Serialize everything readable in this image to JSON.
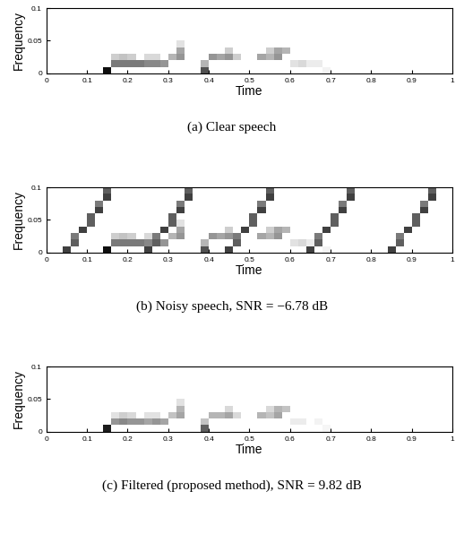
{
  "chart_data": [
    {
      "type": "heatmap",
      "caption": "(a) Clear speech",
      "x_label": "Time",
      "y_label": "Frequency",
      "xlim": [
        0,
        1
      ],
      "ylim": [
        0,
        0.1
      ],
      "xticks": [
        0,
        0.1,
        0.2,
        0.3,
        0.4,
        0.5,
        0.6,
        0.7,
        0.8,
        0.9,
        1
      ],
      "yticks": [
        0,
        0.05,
        0.1
      ],
      "color": "Greys",
      "color_range": [
        0,
        1
      ],
      "x_bins": [
        0,
        0.02,
        0.04,
        0.06,
        0.08,
        0.1,
        0.12,
        0.14,
        0.16,
        0.18,
        0.2,
        0.22,
        0.24,
        0.26,
        0.28,
        0.3,
        0.32,
        0.34,
        0.36,
        0.38,
        0.4,
        0.42,
        0.44,
        0.46,
        0.48,
        0.5,
        0.52,
        0.54,
        0.56,
        0.58,
        0.6,
        0.62,
        0.64,
        0.66,
        0.68,
        0.7,
        0.72,
        0.74,
        0.76,
        0.78,
        0.8,
        0.82,
        0.84,
        0.86,
        0.88,
        0.9,
        0.92,
        0.94,
        0.96,
        0.98,
        1
      ],
      "y_bins": [
        0,
        0.01,
        0.02,
        0.03,
        0.04,
        0.05,
        0.06,
        0.07,
        0.08,
        0.09,
        0.1
      ],
      "cells": [
        [
          0.14,
          0,
          0.95
        ],
        [
          0.16,
          0.01,
          0.6
        ],
        [
          0.18,
          0.01,
          0.6
        ],
        [
          0.2,
          0.01,
          0.6
        ],
        [
          0.22,
          0.01,
          0.6
        ],
        [
          0.24,
          0.01,
          0.55
        ],
        [
          0.26,
          0.01,
          0.55
        ],
        [
          0.28,
          0.01,
          0.5
        ],
        [
          0.16,
          0.02,
          0.3
        ],
        [
          0.18,
          0.02,
          0.35
        ],
        [
          0.2,
          0.02,
          0.3
        ],
        [
          0.24,
          0.02,
          0.25
        ],
        [
          0.26,
          0.02,
          0.25
        ],
        [
          0.3,
          0.02,
          0.4
        ],
        [
          0.32,
          0.02,
          0.5
        ],
        [
          0.32,
          0.03,
          0.45
        ],
        [
          0.32,
          0.04,
          0.2
        ],
        [
          0.38,
          0,
          0.75
        ],
        [
          0.38,
          0.01,
          0.4
        ],
        [
          0.4,
          0.02,
          0.5
        ],
        [
          0.42,
          0.02,
          0.45
        ],
        [
          0.44,
          0.02,
          0.5
        ],
        [
          0.44,
          0.03,
          0.3
        ],
        [
          0.46,
          0.02,
          0.3
        ],
        [
          0.52,
          0.02,
          0.45
        ],
        [
          0.54,
          0.02,
          0.4
        ],
        [
          0.56,
          0.02,
          0.5
        ],
        [
          0.56,
          0.03,
          0.45
        ],
        [
          0.58,
          0.03,
          0.4
        ],
        [
          0.54,
          0.03,
          0.3
        ],
        [
          0.6,
          0.01,
          0.2
        ],
        [
          0.62,
          0.01,
          0.25
        ],
        [
          0.64,
          0.01,
          0.15
        ],
        [
          0.66,
          0.01,
          0.15
        ],
        [
          0.68,
          0,
          0.1
        ]
      ]
    },
    {
      "type": "heatmap",
      "caption": "(b) Noisy speech, SNR = −6.78 dB",
      "x_label": "Time",
      "y_label": "Frequency",
      "xlim": [
        0,
        1
      ],
      "ylim": [
        0,
        0.1
      ],
      "xticks": [
        0,
        0.1,
        0.2,
        0.3,
        0.4,
        0.5,
        0.6,
        0.7,
        0.8,
        0.9,
        1
      ],
      "yticks": [
        0,
        0.05,
        0.1
      ],
      "color": "Greys",
      "color_range": [
        0,
        1
      ],
      "x_bins": [
        0,
        0.02,
        0.04,
        0.06,
        0.08,
        0.1,
        0.12,
        0.14,
        0.16,
        0.18,
        0.2,
        0.22,
        0.24,
        0.26,
        0.28,
        0.3,
        0.32,
        0.34,
        0.36,
        0.38,
        0.4,
        0.42,
        0.44,
        0.46,
        0.48,
        0.5,
        0.52,
        0.54,
        0.56,
        0.58,
        0.6,
        0.62,
        0.64,
        0.66,
        0.68,
        0.7,
        0.72,
        0.74,
        0.76,
        0.78,
        0.8,
        0.82,
        0.84,
        0.86,
        0.88,
        0.9,
        0.92,
        0.94,
        0.96,
        0.98,
        1
      ],
      "y_bins": [
        0,
        0.01,
        0.02,
        0.03,
        0.04,
        0.05,
        0.06,
        0.07,
        0.08,
        0.09,
        0.1
      ],
      "cells": [
        [
          0.14,
          0,
          0.95
        ],
        [
          0.16,
          0.01,
          0.6
        ],
        [
          0.18,
          0.01,
          0.6
        ],
        [
          0.2,
          0.01,
          0.6
        ],
        [
          0.22,
          0.01,
          0.6
        ],
        [
          0.24,
          0.01,
          0.55
        ],
        [
          0.26,
          0.01,
          0.55
        ],
        [
          0.28,
          0.01,
          0.5
        ],
        [
          0.16,
          0.02,
          0.3
        ],
        [
          0.18,
          0.02,
          0.35
        ],
        [
          0.2,
          0.02,
          0.3
        ],
        [
          0.24,
          0.02,
          0.25
        ],
        [
          0.26,
          0.02,
          0.25
        ],
        [
          0.3,
          0.02,
          0.4
        ],
        [
          0.32,
          0.02,
          0.5
        ],
        [
          0.32,
          0.03,
          0.45
        ],
        [
          0.32,
          0.04,
          0.2
        ],
        [
          0.38,
          0,
          0.75
        ],
        [
          0.38,
          0.01,
          0.4
        ],
        [
          0.4,
          0.02,
          0.5
        ],
        [
          0.42,
          0.02,
          0.45
        ],
        [
          0.44,
          0.02,
          0.5
        ],
        [
          0.44,
          0.03,
          0.3
        ],
        [
          0.46,
          0.02,
          0.3
        ],
        [
          0.52,
          0.02,
          0.45
        ],
        [
          0.54,
          0.02,
          0.4
        ],
        [
          0.56,
          0.02,
          0.5
        ],
        [
          0.56,
          0.03,
          0.45
        ],
        [
          0.58,
          0.03,
          0.4
        ],
        [
          0.54,
          0.03,
          0.3
        ],
        [
          0.6,
          0.01,
          0.2
        ],
        [
          0.62,
          0.01,
          0.25
        ],
        [
          0.64,
          0.01,
          0.15
        ],
        [
          0.66,
          0.01,
          0.15
        ],
        [
          0.68,
          0,
          0.1
        ],
        [
          0.04,
          0,
          0.8
        ],
        [
          0.06,
          0.01,
          0.7
        ],
        [
          0.06,
          0.02,
          0.6
        ],
        [
          0.08,
          0.03,
          0.8
        ],
        [
          0.1,
          0.04,
          0.7
        ],
        [
          0.1,
          0.05,
          0.7
        ],
        [
          0.12,
          0.06,
          0.8
        ],
        [
          0.12,
          0.07,
          0.6
        ],
        [
          0.14,
          0.08,
          0.8
        ],
        [
          0.14,
          0.09,
          0.7
        ],
        [
          0.24,
          0,
          0.8
        ],
        [
          0.26,
          0.01,
          0.7
        ],
        [
          0.26,
          0.02,
          0.6
        ],
        [
          0.28,
          0.03,
          0.8
        ],
        [
          0.3,
          0.04,
          0.7
        ],
        [
          0.3,
          0.05,
          0.7
        ],
        [
          0.32,
          0.06,
          0.8
        ],
        [
          0.32,
          0.07,
          0.6
        ],
        [
          0.34,
          0.08,
          0.8
        ],
        [
          0.34,
          0.09,
          0.7
        ],
        [
          0.44,
          0,
          0.8
        ],
        [
          0.46,
          0.01,
          0.7
        ],
        [
          0.46,
          0.02,
          0.6
        ],
        [
          0.48,
          0.03,
          0.8
        ],
        [
          0.5,
          0.04,
          0.7
        ],
        [
          0.5,
          0.05,
          0.7
        ],
        [
          0.52,
          0.06,
          0.8
        ],
        [
          0.52,
          0.07,
          0.6
        ],
        [
          0.54,
          0.08,
          0.8
        ],
        [
          0.54,
          0.09,
          0.7
        ],
        [
          0.64,
          0,
          0.8
        ],
        [
          0.66,
          0.01,
          0.7
        ],
        [
          0.66,
          0.02,
          0.6
        ],
        [
          0.68,
          0.03,
          0.8
        ],
        [
          0.7,
          0.04,
          0.7
        ],
        [
          0.7,
          0.05,
          0.7
        ],
        [
          0.72,
          0.06,
          0.8
        ],
        [
          0.72,
          0.07,
          0.6
        ],
        [
          0.74,
          0.08,
          0.8
        ],
        [
          0.74,
          0.09,
          0.7
        ],
        [
          0.84,
          0,
          0.8
        ],
        [
          0.86,
          0.01,
          0.7
        ],
        [
          0.86,
          0.02,
          0.6
        ],
        [
          0.88,
          0.03,
          0.8
        ],
        [
          0.9,
          0.04,
          0.7
        ],
        [
          0.9,
          0.05,
          0.7
        ],
        [
          0.92,
          0.06,
          0.8
        ],
        [
          0.92,
          0.07,
          0.6
        ],
        [
          0.94,
          0.08,
          0.8
        ],
        [
          0.94,
          0.09,
          0.7
        ]
      ]
    },
    {
      "type": "heatmap",
      "caption": "(c) Filtered (proposed method), SNR = 9.82 dB",
      "x_label": "Time",
      "y_label": "Frequency",
      "xlim": [
        0,
        1
      ],
      "ylim": [
        0,
        0.1
      ],
      "xticks": [
        0,
        0.1,
        0.2,
        0.3,
        0.4,
        0.5,
        0.6,
        0.7,
        0.8,
        0.9,
        1
      ],
      "yticks": [
        0,
        0.05,
        0.1
      ],
      "color": "Greys",
      "color_range": [
        0,
        1
      ],
      "x_bins": [
        0,
        0.02,
        0.04,
        0.06,
        0.08,
        0.1,
        0.12,
        0.14,
        0.16,
        0.18,
        0.2,
        0.22,
        0.24,
        0.26,
        0.28,
        0.3,
        0.32,
        0.34,
        0.36,
        0.38,
        0.4,
        0.42,
        0.44,
        0.46,
        0.48,
        0.5,
        0.52,
        0.54,
        0.56,
        0.58,
        0.6,
        0.62,
        0.64,
        0.66,
        0.68,
        0.7,
        0.72,
        0.74,
        0.76,
        0.78,
        0.8,
        0.82,
        0.84,
        0.86,
        0.88,
        0.9,
        0.92,
        0.94,
        0.96,
        0.98,
        1
      ],
      "y_bins": [
        0,
        0.01,
        0.02,
        0.03,
        0.04,
        0.05,
        0.06,
        0.07,
        0.08,
        0.09,
        0.1
      ],
      "cells": [
        [
          0.14,
          0,
          0.9
        ],
        [
          0.16,
          0.01,
          0.5
        ],
        [
          0.18,
          0.01,
          0.55
        ],
        [
          0.2,
          0.01,
          0.5
        ],
        [
          0.22,
          0.01,
          0.5
        ],
        [
          0.24,
          0.01,
          0.45
        ],
        [
          0.26,
          0.01,
          0.5
        ],
        [
          0.28,
          0.01,
          0.45
        ],
        [
          0.16,
          0.02,
          0.2
        ],
        [
          0.18,
          0.02,
          0.3
        ],
        [
          0.2,
          0.02,
          0.25
        ],
        [
          0.24,
          0.02,
          0.2
        ],
        [
          0.26,
          0.02,
          0.2
        ],
        [
          0.3,
          0.02,
          0.35
        ],
        [
          0.32,
          0.02,
          0.45
        ],
        [
          0.32,
          0.03,
          0.4
        ],
        [
          0.32,
          0.04,
          0.2
        ],
        [
          0.38,
          0,
          0.7
        ],
        [
          0.38,
          0.01,
          0.35
        ],
        [
          0.4,
          0.02,
          0.4
        ],
        [
          0.42,
          0.02,
          0.4
        ],
        [
          0.44,
          0.02,
          0.45
        ],
        [
          0.44,
          0.03,
          0.25
        ],
        [
          0.46,
          0.02,
          0.25
        ],
        [
          0.52,
          0.02,
          0.4
        ],
        [
          0.54,
          0.02,
          0.35
        ],
        [
          0.56,
          0.02,
          0.45
        ],
        [
          0.56,
          0.03,
          0.4
        ],
        [
          0.58,
          0.03,
          0.35
        ],
        [
          0.54,
          0.03,
          0.25
        ],
        [
          0.6,
          0.01,
          0.15
        ],
        [
          0.62,
          0.01,
          0.15
        ],
        [
          0.66,
          0.01,
          0.1
        ],
        [
          0.68,
          0,
          0.08
        ]
      ]
    }
  ]
}
